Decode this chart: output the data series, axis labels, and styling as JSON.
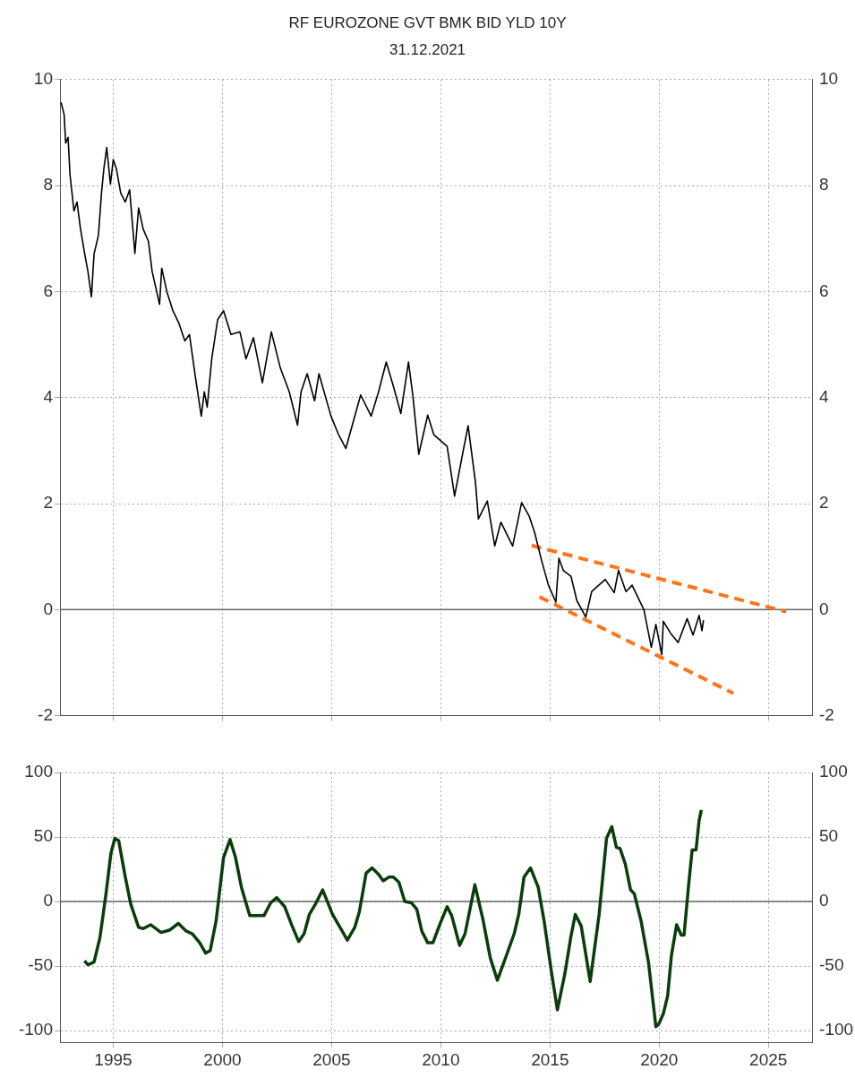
{
  "chart_data": [
    {
      "type": "line",
      "title": "RF EUROZONE GVT BMK BID YLD 10Y",
      "subtitle": "31.12.2021",
      "xlim": [
        1992.56,
        2027
      ],
      "xticks": [
        1995,
        2000,
        2005,
        2010,
        2015,
        2020,
        2025
      ],
      "ylim": [
        -2,
        10
      ],
      "yticks": [
        -2,
        0,
        2,
        4,
        6,
        8,
        10
      ],
      "y2lim": [
        -2,
        10
      ],
      "y2ticks": [
        -2,
        0,
        2,
        4,
        6,
        8,
        10
      ],
      "tick_labels": "y",
      "grid": true,
      "legend": false,
      "ref_lines": [
        {
          "axis": "y",
          "value": 0,
          "color": "#666666"
        }
      ],
      "series": [
        {
          "color": "#000000",
          "x": [
            1992.61,
            1992.75,
            1992.82,
            1992.93,
            1993.02,
            1993.2,
            1993.34,
            1993.5,
            1993.71,
            1993.84,
            1994.0,
            1994.12,
            1994.32,
            1994.46,
            1994.57,
            1994.7,
            1994.87,
            1995.0,
            1995.14,
            1995.34,
            1995.55,
            1995.75,
            1995.99,
            1996.16,
            1996.37,
            1996.61,
            1996.78,
            1997.12,
            1997.22,
            1997.46,
            1997.73,
            1998.0,
            1998.28,
            1998.49,
            1998.76,
            1999.03,
            1999.17,
            1999.3,
            1999.51,
            1999.78,
            2000.05,
            2000.39,
            2000.8,
            2001.08,
            2001.42,
            2001.83,
            2002.24,
            2002.65,
            2003.06,
            2003.44,
            2003.6,
            2003.88,
            2004.22,
            2004.42,
            2004.97,
            2005.31,
            2005.65,
            2006.33,
            2006.81,
            2007.15,
            2007.5,
            2007.83,
            2008.17,
            2008.52,
            2008.72,
            2008.99,
            2009.4,
            2009.68,
            2010.29,
            2010.63,
            2010.98,
            2011.25,
            2011.59,
            2011.72,
            2012.13,
            2012.47,
            2012.75,
            2013.29,
            2013.7,
            2014.05,
            2014.3,
            2014.6,
            2014.93,
            2015.27,
            2015.41,
            2015.61,
            2015.96,
            2016.23,
            2016.64,
            2016.91,
            2017.53,
            2017.94,
            2018.14,
            2018.48,
            2018.76,
            2019.3,
            2019.64,
            2019.85,
            2020.12,
            2020.19,
            2020.53,
            2020.87,
            2021.28,
            2021.55,
            2021.83,
            2021.96,
            2022.03
          ],
          "values": [
            9.57,
            9.34,
            8.8,
            8.91,
            8.2,
            7.52,
            7.69,
            7.18,
            6.67,
            6.38,
            5.9,
            6.71,
            7.06,
            7.86,
            8.32,
            8.72,
            8.03,
            8.49,
            8.32,
            7.86,
            7.69,
            7.92,
            6.72,
            7.58,
            7.18,
            6.95,
            6.38,
            5.76,
            6.44,
            5.99,
            5.64,
            5.41,
            5.07,
            5.19,
            4.39,
            3.65,
            4.11,
            3.82,
            4.73,
            5.47,
            5.64,
            5.19,
            5.24,
            4.73,
            5.13,
            4.28,
            5.24,
            4.56,
            4.11,
            3.48,
            4.11,
            4.45,
            3.94,
            4.45,
            3.65,
            3.31,
            3.04,
            4.05,
            3.65,
            4.11,
            4.67,
            4.21,
            3.7,
            4.67,
            4.04,
            2.93,
            3.67,
            3.3,
            3.08,
            2.14,
            2.9,
            3.47,
            2.39,
            1.71,
            2.05,
            1.2,
            1.65,
            1.2,
            2.02,
            1.76,
            1.45,
            0.95,
            0.46,
            0.14,
            0.97,
            0.74,
            0.63,
            0.17,
            -0.14,
            0.34,
            0.57,
            0.32,
            0.74,
            0.34,
            0.46,
            0.0,
            -0.71,
            -0.28,
            -0.85,
            -0.22,
            -0.45,
            -0.62,
            -0.17,
            -0.48,
            -0.11,
            -0.4,
            -0.2
          ]
        },
        {
          "color": "#ff7518",
          "line_style": "dashed",
          "x": [
            2014.16,
            2025.82
          ],
          "values": [
            1.21,
            -0.04
          ]
        },
        {
          "color": "#ff7518",
          "line_style": "dashed",
          "x": [
            2014.52,
            2023.4
          ],
          "values": [
            0.24,
            -1.58
          ]
        }
      ]
    },
    {
      "type": "line",
      "xlim": [
        1992.56,
        2027
      ],
      "xticks": [
        1995,
        2000,
        2005,
        2010,
        2015,
        2020,
        2025
      ],
      "ylim": [
        -109,
        100
      ],
      "yticks": [
        -100,
        -50,
        0,
        50,
        100
      ],
      "y2lim": [
        -109,
        100
      ],
      "y2ticks": [
        -100,
        -50,
        0,
        50,
        100
      ],
      "grid": true,
      "legend": false,
      "ref_lines": [
        {
          "axis": "y",
          "value": 0,
          "color": "#666666"
        }
      ],
      "series": [
        {
          "color": "#0b3d0b",
          "x": [
            1993.68,
            1993.84,
            1994.12,
            1994.39,
            1994.66,
            1994.89,
            1995.07,
            1995.25,
            1995.55,
            1995.8,
            1996.16,
            1996.37,
            1996.71,
            1997.19,
            1997.6,
            1997.98,
            1998.35,
            1998.62,
            1998.96,
            1999.23,
            1999.44,
            1999.71,
            2000.05,
            2000.35,
            2000.6,
            2000.87,
            2001.25,
            2001.62,
            2001.9,
            2002.21,
            2002.48,
            2002.85,
            2003.19,
            2003.49,
            2003.74,
            2003.98,
            2004.26,
            2004.59,
            2005.04,
            2005.45,
            2005.72,
            2006.06,
            2006.27,
            2006.58,
            2006.85,
            2007.15,
            2007.36,
            2007.63,
            2007.83,
            2008.08,
            2008.35,
            2008.65,
            2008.9,
            2009.13,
            2009.4,
            2009.64,
            2009.95,
            2010.29,
            2010.5,
            2010.86,
            2011.11,
            2011.56,
            2011.93,
            2012.27,
            2012.59,
            2013.0,
            2013.36,
            2013.57,
            2013.81,
            2014.11,
            2014.46,
            2014.73,
            2015.07,
            2015.34,
            2015.68,
            2015.96,
            2016.16,
            2016.43,
            2016.84,
            2017.25,
            2017.59,
            2017.83,
            2018.04,
            2018.21,
            2018.45,
            2018.69,
            2018.86,
            2019.17,
            2019.51,
            2019.85,
            2019.98,
            2020.19,
            2020.39,
            2020.56,
            2020.8,
            2021.01,
            2021.14,
            2021.35,
            2021.51,
            2021.69,
            2021.83,
            2021.93
          ],
          "values": [
            -46,
            -49,
            -47,
            -28,
            5,
            37,
            49,
            47,
            19,
            -2,
            -20,
            -21,
            -18,
            -24,
            -22,
            -17,
            -23,
            -25,
            -32,
            -40,
            -38,
            -15,
            34,
            48,
            34,
            11,
            -11,
            -11,
            -11,
            -1,
            3,
            -4,
            -19,
            -31,
            -25,
            -10,
            -2,
            9,
            -10,
            -22,
            -30,
            -20,
            -8,
            22,
            26,
            21,
            16,
            19,
            19,
            15,
            0,
            -1,
            -6,
            -23,
            -32,
            -32,
            -18,
            -4,
            -11,
            -34,
            -25,
            13,
            -14,
            -44,
            -61,
            -42,
            -25,
            -10,
            19,
            26,
            11,
            -15,
            -55,
            -84,
            -56,
            -27,
            -10,
            -19,
            -62,
            -10,
            49,
            58,
            42,
            41,
            29,
            9,
            6,
            -15,
            -47,
            -97,
            -95,
            -87,
            -73,
            -42,
            -18,
            -26,
            -26,
            13,
            40,
            40,
            63,
            71
          ]
        }
      ]
    }
  ]
}
